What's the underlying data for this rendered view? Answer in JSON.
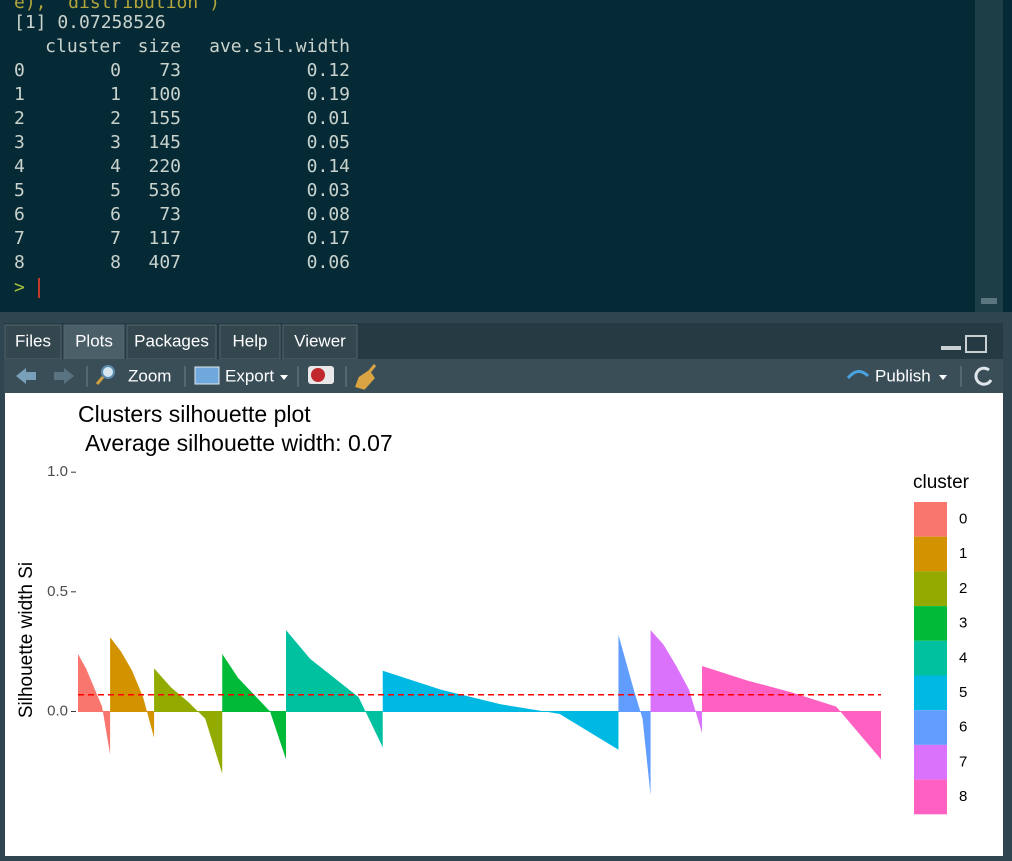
{
  "console": {
    "partial_line": "e),  \"distribution\")",
    "output": "[1] 0.07258526",
    "columns": [
      "cluster",
      "size",
      "ave.sil.width"
    ],
    "rows": [
      [
        0,
        0,
        73,
        0.12
      ],
      [
        1,
        1,
        100,
        0.19
      ],
      [
        2,
        2,
        155,
        0.01
      ],
      [
        3,
        3,
        145,
        0.05
      ],
      [
        4,
        4,
        220,
        0.14
      ],
      [
        5,
        5,
        536,
        0.03
      ],
      [
        6,
        6,
        73,
        0.08
      ],
      [
        7,
        7,
        117,
        0.17
      ],
      [
        8,
        8,
        407,
        0.06
      ]
    ],
    "prompt": ">"
  },
  "tabs": [
    "Files",
    "Plots",
    "Packages",
    "Help",
    "Viewer"
  ],
  "active_tab": 1,
  "toolbar": {
    "zoom": "Zoom",
    "export": "Export",
    "publish": "Publish"
  },
  "chart_data": {
    "type": "silhouette",
    "title": "Clusters silhouette plot",
    "subtitle": "Average silhouette width: 0.07",
    "y_label": "Silhouette width Si",
    "ylim": [
      -0.37,
      1.03
    ],
    "yticks": [
      {
        "value": 0,
        "label": "0.0"
      },
      0.5,
      {
        "value": 1,
        "label": "1.0"
      }
    ],
    "average_line": 0.07,
    "average_line_color": "#ff0000",
    "legend_title": "cluster",
    "legend_position": "right",
    "series": [
      {
        "name": "0",
        "color": "#F8766D",
        "size": 73,
        "values": [
          0.24,
          0.18,
          0.1,
          0.02,
          -0.18
        ]
      },
      {
        "name": "1",
        "color": "#D39200",
        "size": 100,
        "values": [
          0.31,
          0.25,
          0.17,
          0.06,
          -0.11
        ]
      },
      {
        "name": "2",
        "color": "#93AA00",
        "size": 155,
        "values": [
          0.18,
          0.1,
          0.04,
          -0.03,
          -0.26
        ]
      },
      {
        "name": "3",
        "color": "#00BA38",
        "size": 145,
        "values": [
          0.24,
          0.14,
          0.07,
          0.0,
          -0.2
        ]
      },
      {
        "name": "4",
        "color": "#00C19F",
        "size": 220,
        "values": [
          0.34,
          0.22,
          0.14,
          0.06,
          -0.15
        ]
      },
      {
        "name": "5",
        "color": "#00B9E3",
        "size": 536,
        "values": [
          0.17,
          0.09,
          0.03,
          -0.01,
          -0.16
        ]
      },
      {
        "name": "6",
        "color": "#619CFF",
        "size": 73,
        "values": [
          0.32,
          0.2,
          0.08,
          -0.03,
          -0.35
        ]
      },
      {
        "name": "7",
        "color": "#DB72FB",
        "size": 117,
        "values": [
          0.34,
          0.28,
          0.19,
          0.09,
          -0.09
        ]
      },
      {
        "name": "8",
        "color": "#FF61C3",
        "size": 407,
        "values": [
          0.19,
          0.13,
          0.08,
          0.02,
          -0.2
        ]
      }
    ]
  }
}
